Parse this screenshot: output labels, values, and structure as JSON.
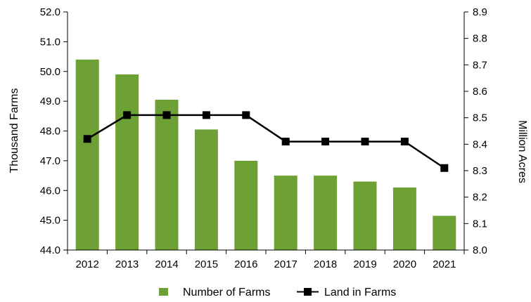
{
  "chart_data": {
    "type": "bar",
    "categories": [
      "2012",
      "2013",
      "2014",
      "2015",
      "2016",
      "2017",
      "2018",
      "2019",
      "2020",
      "2021"
    ],
    "series": [
      {
        "name": "Number of Farms",
        "type": "bar",
        "axis": "left",
        "color": "#6ea135",
        "values": [
          50.4,
          49.9,
          49.05,
          48.05,
          47.0,
          46.5,
          46.5,
          46.3,
          46.1,
          45.15
        ]
      },
      {
        "name": "Land in Farms",
        "type": "line",
        "axis": "right",
        "color": "#000000",
        "marker": "square",
        "values": [
          8.42,
          8.51,
          8.51,
          8.51,
          8.51,
          8.41,
          8.41,
          8.41,
          8.41,
          8.31
        ]
      }
    ],
    "ylabel": "Thousand Farms",
    "y2label": "Million Acres",
    "ylim": [
      44.0,
      52.0
    ],
    "y2lim": [
      8.0,
      8.9
    ],
    "yticks": [
      "44.0",
      "45.0",
      "46.0",
      "47.0",
      "48.0",
      "49.0",
      "50.0",
      "51.0",
      "52.0"
    ],
    "y2ticks": [
      "8.0",
      "8.1",
      "8.2",
      "8.3",
      "8.4",
      "8.5",
      "8.6",
      "8.7",
      "8.8",
      "8.9"
    ],
    "grid": false,
    "legend_position": "bottom"
  }
}
